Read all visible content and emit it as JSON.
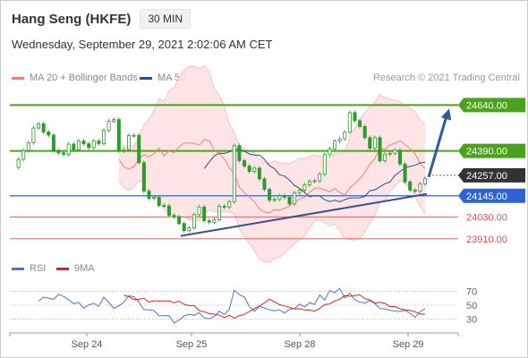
{
  "header": {
    "title": "Hang Seng (HKFE)",
    "timeframe": "30 MIN",
    "datetime": "Wednesday, September 29, 2021 2:02:06 AM CET"
  },
  "legend": {
    "ma20_label": "MA 20 + Bollinger Bands",
    "ma50_label": "MA 50",
    "credit": "Research © 2021 Trading Central",
    "rsi_label": "RSI",
    "ma9_label": "9MA"
  },
  "colors": {
    "ma20": "#f08080",
    "ma50": "#2c4d8e",
    "bollinger_fill": "#fde0e0",
    "green_level": "#4aa31a",
    "blue_level": "#2e63d6",
    "red_level": "#e05050",
    "candle": "#2a9c2a",
    "trend": "#3a4f94",
    "arrow": "#2f5aa0",
    "current_price": "#333333",
    "rsi": "#4a74d4",
    "rsi_ma": "#e02020"
  },
  "chart_data": [
    {
      "type": "candlestick",
      "title": "Hang Seng (HKFE)",
      "timeframe": "30 MIN",
      "x_tick_labels": [
        "Sep 24",
        "Sep 25",
        "Sep 28",
        "Sep 29"
      ],
      "ylim": [
        23880,
        24730
      ],
      "close": [
        24300,
        24344,
        24392,
        24434,
        24515,
        24538,
        24493,
        24476,
        24392,
        24379,
        24371,
        24427,
        24397,
        24444,
        24429,
        24408,
        24444,
        24430,
        24501,
        24552,
        24561,
        24391,
        24397,
        24474,
        24475,
        24326,
        24170,
        24131,
        24137,
        24092,
        24090,
        24038,
        24030,
        23994,
        23955,
        23970,
        24042,
        24084,
        24009,
        24001,
        24014,
        24088,
        24083,
        24113,
        24419,
        24337,
        24307,
        24278,
        24296,
        24237,
        24180,
        24121,
        24125,
        24145,
        24137,
        24101,
        24162,
        24176,
        24205,
        24224,
        24227,
        24263,
        24370,
        24401,
        24444,
        24456,
        24492,
        24599,
        24555,
        24523,
        24462,
        24405,
        24462,
        24336,
        24372,
        24377,
        24394,
        24318,
        24221,
        24176,
        24170,
        24210,
        24240
      ],
      "levels": {
        "resistance": [
          24640.0,
          24390.0
        ],
        "current_price": 24257.0,
        "pivot": 24145.0,
        "support": [
          24030.0,
          23910.0
        ]
      },
      "ma20": [
        24346.4,
        24302.6,
        24292.0,
        24303.9,
        24346.1,
        24371.1,
        24357.2,
        24375.8,
        24406.2,
        24362.7,
        24390.0,
        24380.3,
        24412.1,
        24432.5,
        24432.8,
        24432.2,
        24421.5,
        24452.0,
        24446.0,
        24395.1,
        24375.9,
        24346.5,
        24299.0,
        24266.0,
        24193.2,
        24162.5,
        24138.4,
        24112.6,
        24072.6,
        24056.2,
        24052.0,
        24069.1,
        24066.3,
        24076.5,
        24089.4,
        24109.4,
        24127.5,
        24136.6,
        24165.5,
        24186.5,
        24187.6,
        24177.3,
        24166.7,
        24184.9,
        24163.1,
        24147.6,
        24188.2,
        24209.5,
        24237.2,
        24272.6,
        24316.7,
        24347.9,
        24402.6,
        24399.4,
        24421.7,
        24431.8,
        24444.7,
        24425.0,
        24401.2,
        24374.2,
        24322.6,
        24293.0
      ],
      "ma50": [
        24294.0,
        24329.4,
        24362.3,
        24377.7,
        24376.0,
        24385.1,
        24397.7,
        24399.4,
        24388.7,
        24373.2,
        24366.6,
        24366.8,
        24343.6,
        24309.5,
        24293.2,
        24260.1,
        24252.7,
        24230.8,
        24200.9,
        24185.6,
        24162.7,
        24139.8,
        24145.6,
        24144.7,
        24123.9,
        24112.8,
        24120.6,
        24112.2,
        24123.8,
        24132.8,
        24133.5,
        24133.8,
        24141.8,
        24172.9,
        24177.7,
        24194.2,
        24210.7,
        24220.1,
        24255.7,
        24277.6,
        24298.1,
        24305.5,
        24311.4,
        24324.7,
        24328.1
      ],
      "rsi": {
        "y_tick_labels": [
          "70",
          "50",
          "30"
        ],
        "ylim": [
          15,
          85
        ],
        "rsi": [
          56,
          61.7,
          60.3,
          58.5,
          65.5,
          62.6,
          58,
          52.1,
          54,
          45.5,
          50.5,
          52.6,
          48.5,
          61.7,
          53.9,
          45.4,
          49.1,
          54.2,
          63.6,
          62.3,
          54.6,
          43.6,
          43.3,
          42.3,
          34.6,
          34.8,
          34.8,
          24.3,
          28.3,
          34.4,
          36.8,
          35.3,
          39.2,
          31.4,
          30.4,
          33.6,
          41.3,
          36.4,
          44.3,
          71.6,
          65.3,
          61.9,
          48,
          41.1,
          48.5,
          46,
          43.3,
          41.8,
          43.5,
          38.4,
          44.2,
          45.1,
          51.4,
          47.6,
          53.7,
          51.1,
          64.9,
          57.5,
          71.2,
          68.1,
          74.3,
          60.6,
          67.4,
          57.9,
          54.6,
          53.3,
          56.5,
          52.5,
          45.3,
          44.7,
          42.8,
          41.2,
          41,
          42.6,
          38.3,
          32.4,
          40.7,
          45.1
        ],
        "ma9": [
          64.4,
          62.6,
          58,
          58.5,
          59.8,
          54.5,
          56.5,
          56.2,
          56.2,
          56.4,
          53.4,
          55.8,
          51.4,
          49.3,
          49.4,
          42.2,
          40.5,
          37.8,
          36.9,
          35.6,
          32.2,
          35.4,
          31.3,
          34.9,
          36.7,
          40.9,
          45.1,
          48.9,
          53.3,
          58.8,
          54.8,
          50.8,
          48.9,
          47,
          44.4,
          44.9,
          43.1,
          43,
          41.3,
          45.3,
          51,
          51.8,
          56.1,
          58.5,
          64,
          62.9,
          64.1,
          64.9,
          59.6,
          57.8,
          53.1,
          54.2,
          52.7,
          48.1,
          48,
          44.8,
          43.4,
          42.4,
          40.5,
          37.2,
          36.9
        ]
      }
    }
  ]
}
